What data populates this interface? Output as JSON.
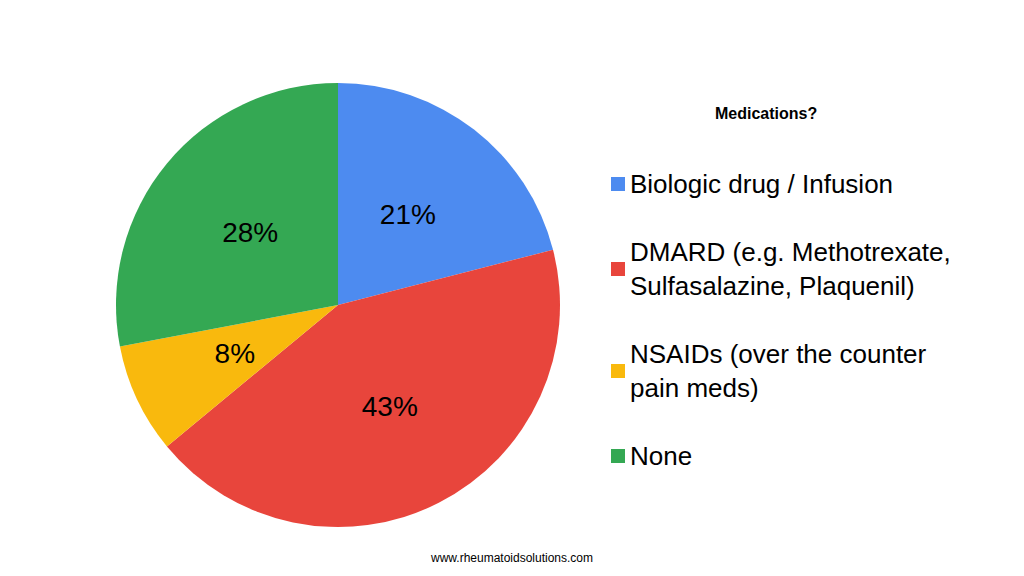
{
  "chart_data": {
    "type": "pie",
    "title": "Medications?",
    "categories": [
      "Biologic drug / Infusion",
      "DMARD (e.g. Methotrexate, Sulfasalazine, Plaquenil)",
      "NSAIDs (over the counter pain meds)",
      "None"
    ],
    "values": [
      21,
      43,
      8,
      28
    ],
    "value_labels": [
      "21%",
      "43%",
      "8%",
      "28%"
    ],
    "colors": [
      "#4d8bf0",
      "#e8453c",
      "#f9b90d",
      "#34a853"
    ],
    "data_labels": true,
    "legend": "right",
    "annotations": [
      "www.rheumatoidsolutions.com"
    ]
  }
}
